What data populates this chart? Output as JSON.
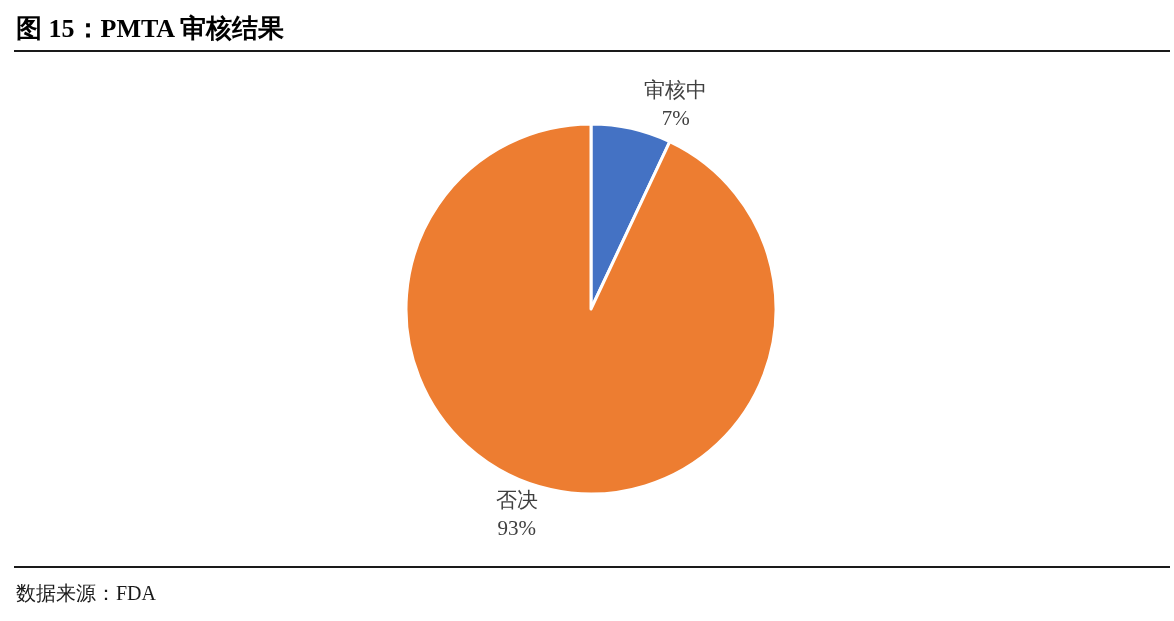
{
  "chart_data": {
    "type": "pie",
    "title": "图 15：PMTA 审核结果",
    "categories": [
      "审核中",
      "否决"
    ],
    "values": [
      7,
      93
    ],
    "colors": [
      "#4472c4",
      "#ed7d31"
    ],
    "value_labels": [
      "7%",
      "93%"
    ],
    "annotations": [
      "数据来源：FDA"
    ],
    "legend": false
  }
}
